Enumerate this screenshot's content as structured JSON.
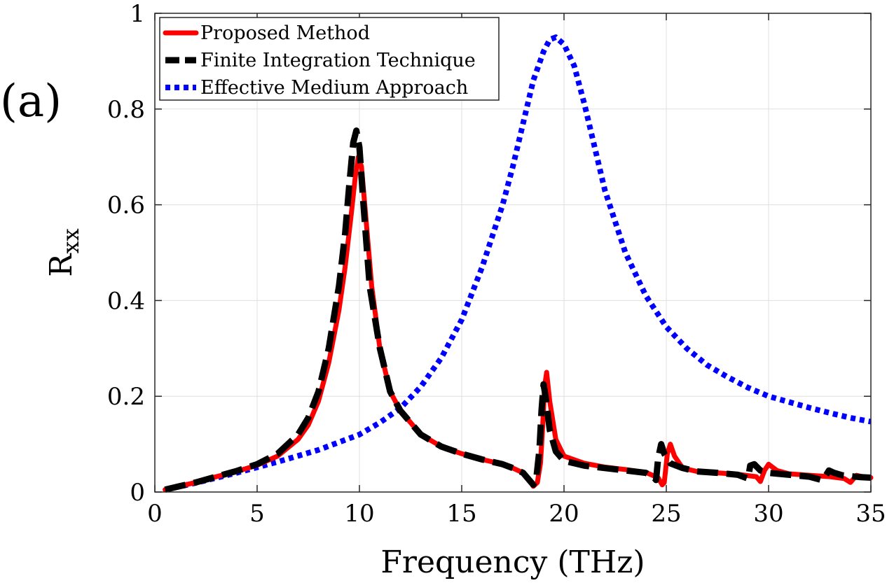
{
  "panel_label": "(a)",
  "chart_data": {
    "type": "line",
    "title": "",
    "xlabel": "Frequency (THz)",
    "ylabel_main": "R",
    "ylabel_sub": "xx",
    "xlim": [
      0,
      35
    ],
    "ylim": [
      0,
      1
    ],
    "xticks": [
      0,
      5,
      10,
      15,
      20,
      25,
      30,
      35
    ],
    "yticks": [
      0,
      0.2,
      0.4,
      0.6,
      0.8,
      1
    ],
    "xtick_labels": [
      "0",
      "5",
      "10",
      "15",
      "20",
      "25",
      "30",
      "35"
    ],
    "ytick_labels": [
      "0",
      "0.2",
      "0.4",
      "0.6",
      "0.8",
      "1"
    ],
    "grid": true,
    "legend_position": "top-left",
    "series": [
      {
        "name": "Proposed Method",
        "color": "#ff0000",
        "style": "solid",
        "x": [
          0.5,
          2,
          3,
          4,
          5,
          6,
          7,
          7.5,
          8,
          8.5,
          9,
          9.3,
          9.6,
          9.8,
          9.95,
          10.1,
          10.3,
          10.6,
          11,
          11.5,
          12,
          13,
          14,
          15,
          16,
          17,
          17.5,
          18,
          18.3,
          18.5,
          18.7,
          18.85,
          18.95,
          19.05,
          19.15,
          19.3,
          19.6,
          20,
          21,
          22,
          23,
          24,
          24.6,
          24.8,
          24.9,
          25.05,
          25.2,
          25.4,
          25.8,
          26.5,
          27.5,
          28.5,
          29.4,
          29.6,
          29.8,
          30,
          30.4,
          31,
          32,
          33,
          33.7,
          34,
          34.3,
          34.6,
          35
        ],
        "y": [
          0.005,
          0.02,
          0.032,
          0.043,
          0.056,
          0.075,
          0.11,
          0.14,
          0.19,
          0.27,
          0.38,
          0.47,
          0.58,
          0.66,
          0.7,
          0.68,
          0.58,
          0.43,
          0.3,
          0.21,
          0.17,
          0.12,
          0.095,
          0.08,
          0.068,
          0.058,
          0.05,
          0.04,
          0.025,
          0.012,
          0.02,
          0.06,
          0.13,
          0.22,
          0.25,
          0.19,
          0.11,
          0.075,
          0.06,
          0.052,
          0.047,
          0.041,
          0.03,
          0.015,
          0.02,
          0.08,
          0.1,
          0.075,
          0.05,
          0.043,
          0.04,
          0.037,
          0.032,
          0.022,
          0.045,
          0.058,
          0.045,
          0.038,
          0.035,
          0.032,
          0.028,
          0.02,
          0.035,
          0.032,
          0.03
        ]
      },
      {
        "name": "Finite Integration Technique",
        "color": "#000000",
        "style": "dashed",
        "x": [
          0.5,
          2,
          3,
          4,
          5,
          6,
          7,
          7.5,
          8,
          8.5,
          9,
          9.3,
          9.5,
          9.7,
          9.85,
          10,
          10.2,
          10.5,
          11,
          11.5,
          12,
          13,
          14,
          15,
          16,
          17,
          17.5,
          18,
          18.3,
          18.5,
          18.65,
          18.8,
          18.9,
          19,
          19.1,
          19.3,
          19.6,
          20,
          21,
          22,
          23,
          24,
          24.4,
          24.5,
          24.6,
          24.75,
          24.9,
          25.2,
          25.8,
          26.5,
          27.5,
          28.5,
          29,
          29.1,
          29.3,
          29.6,
          30,
          31,
          32,
          32.6,
          32.8,
          32.95,
          33.2,
          33.6,
          34.5,
          35
        ],
        "y": [
          0.005,
          0.02,
          0.032,
          0.044,
          0.058,
          0.08,
          0.12,
          0.155,
          0.21,
          0.3,
          0.43,
          0.54,
          0.64,
          0.73,
          0.755,
          0.72,
          0.6,
          0.43,
          0.3,
          0.21,
          0.17,
          0.12,
          0.095,
          0.08,
          0.068,
          0.058,
          0.05,
          0.04,
          0.025,
          0.015,
          0.03,
          0.09,
          0.17,
          0.225,
          0.2,
          0.13,
          0.085,
          0.065,
          0.055,
          0.05,
          0.045,
          0.04,
          0.03,
          0.025,
          0.07,
          0.1,
          0.08,
          0.06,
          0.05,
          0.043,
          0.04,
          0.036,
          0.028,
          0.055,
          0.058,
          0.045,
          0.04,
          0.036,
          0.032,
          0.025,
          0.035,
          0.045,
          0.04,
          0.035,
          0.031,
          0.03
        ]
      },
      {
        "name": "Effective Medium Approach",
        "color": "#0000ff",
        "style": "dotted",
        "x": [
          0.5,
          2,
          4,
          6,
          8,
          10,
          11,
          12,
          13,
          14,
          15,
          16,
          17,
          17.5,
          18,
          18.5,
          19,
          19.3,
          19.6,
          20,
          20.5,
          21,
          21.5,
          22,
          23,
          24,
          25,
          26,
          27,
          28,
          29,
          30,
          31,
          32,
          33,
          34,
          35
        ],
        "y": [
          0.005,
          0.019,
          0.04,
          0.063,
          0.088,
          0.12,
          0.145,
          0.175,
          0.22,
          0.28,
          0.36,
          0.47,
          0.6,
          0.68,
          0.77,
          0.86,
          0.92,
          0.945,
          0.95,
          0.935,
          0.89,
          0.81,
          0.72,
          0.63,
          0.5,
          0.41,
          0.345,
          0.3,
          0.265,
          0.24,
          0.218,
          0.2,
          0.188,
          0.176,
          0.165,
          0.155,
          0.147
        ]
      }
    ]
  }
}
